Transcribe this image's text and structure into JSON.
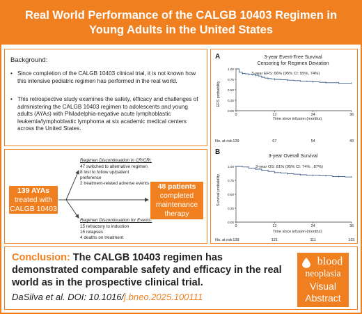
{
  "header": {
    "title_line1": "Real World Performance of the CALGB 10403 Regimen in",
    "title_line2": "Young Adults in the United States"
  },
  "background": {
    "title": "Background:",
    "bullets": [
      "Since completion of the CALGB 10403 clinical trial, it is not known how this intensive pediatric  regimen has performed in the real world.",
      "This retrospective study examines the safety, efficacy and challenges of administering the CALGB 10403 regimen to adolescents and young adults (AYAs) with Philadelphia-negative acute lymphoblastic leukemia/lymphoblastic lymphoma at six academic medical centers across the United States."
    ]
  },
  "flow": {
    "start_line1": "139 AYAs",
    "start_line2": "treated with",
    "start_line3": "CALGB 10403",
    "end_line1": "48 patients",
    "end_line2": "completed",
    "end_line3": "maintenance",
    "end_line4": "therapy",
    "cr_heading": "Regimen Discontinuation in CR/CRi:",
    "cr_items": [
      "47 switched to alternative regimen",
      "8 lost to follow up/patient",
      "preference",
      "2 treatment-related adverse events"
    ],
    "events_heading": "Regimen Discontinuation for Events:",
    "events_items": [
      "15 refractory to induction",
      "15 relapses",
      "4 deaths on treatment"
    ]
  },
  "charts": {
    "A": {
      "panel_letter": "A",
      "title_line1": "3-year Event-Free Survival",
      "title_line2": "Censoring for Regimen Deviation",
      "annotation": "3-year EFS: 66% (95% CI: 55%, 74%)",
      "ylabel": "EFS probability",
      "xlabel": "Time since infusion (months)",
      "x_ticks": [
        "0",
        "12",
        "24",
        "36"
      ],
      "y_ticks": [
        "0.00",
        "0.25",
        "0.50",
        "0.75",
        "1.00"
      ],
      "risk_label": "No. at risk",
      "risk_values": [
        "139",
        "67",
        "54",
        "49"
      ]
    },
    "B": {
      "panel_letter": "B",
      "title": "3-year Overall Survival",
      "annotation": "3-year OS: 81% (95% CI: 74% , 87%)",
      "ylabel": "Survival probability",
      "xlabel": "Time since infusion (months)",
      "x_ticks": [
        "0",
        "12",
        "24",
        "36"
      ],
      "y_ticks": [
        "0.00",
        "0.25",
        "0.50",
        "0.75",
        "1.00"
      ],
      "risk_label": "No. at risk",
      "risk_values": [
        "139",
        "121",
        "111",
        "101"
      ]
    }
  },
  "chart_data": [
    {
      "type": "line",
      "title": "3-year Event-Free Survival",
      "subtitle": "Censoring for Regimen Deviation",
      "xlabel": "Time since infusion (months)",
      "ylabel": "EFS probability",
      "xlim": [
        0,
        36
      ],
      "ylim": [
        0,
        1
      ],
      "series": [
        {
          "x": [
            0,
            1,
            2,
            3,
            4,
            5,
            6,
            7,
            8,
            9,
            10,
            11,
            12,
            14,
            16,
            18,
            20,
            22,
            24,
            26,
            28,
            30,
            32,
            34,
            36
          ],
          "y": [
            1.0,
            0.92,
            0.89,
            0.88,
            0.87,
            0.86,
            0.85,
            0.83,
            0.8,
            0.78,
            0.77,
            0.76,
            0.75,
            0.74,
            0.73,
            0.72,
            0.71,
            0.7,
            0.69,
            0.68,
            0.67,
            0.67,
            0.66,
            0.66,
            0.66
          ]
        }
      ],
      "risk_table": {
        "x": [
          0,
          12,
          24,
          36
        ],
        "n": [
          139,
          67,
          54,
          49
        ]
      }
    },
    {
      "type": "line",
      "title": "3-year Overall Survival",
      "xlabel": "Time since infusion (months)",
      "ylabel": "Survival probability",
      "xlim": [
        0,
        36
      ],
      "ylim": [
        0,
        1
      ],
      "series": [
        {
          "x": [
            0,
            2,
            4,
            6,
            8,
            10,
            12,
            14,
            16,
            18,
            20,
            22,
            24,
            26,
            28,
            30,
            32,
            34,
            36
          ],
          "y": [
            1.0,
            0.99,
            0.97,
            0.95,
            0.93,
            0.91,
            0.89,
            0.88,
            0.87,
            0.86,
            0.85,
            0.84,
            0.84,
            0.83,
            0.83,
            0.82,
            0.82,
            0.81,
            0.81
          ]
        }
      ],
      "risk_table": {
        "x": [
          0,
          12,
          24,
          36
        ],
        "n": [
          139,
          121,
          111,
          101
        ]
      }
    }
  ],
  "conclusion": {
    "label": "Conclusion:",
    "text": " The CALGB 10403 regimen has demonstrated comparable safety and efficacy in the real world as in the prospective clinical trial.",
    "citation_prefix": "DaSilva et al. DOI: 10.1016/",
    "citation_doi": "j.bneo.2025.100111"
  },
  "logo": {
    "word1": "blood",
    "word2": "neoplasia",
    "word3": "Visual",
    "word4": "Abstract"
  },
  "colors": {
    "accent": "#f07f1f",
    "curve": "#3a5f8a"
  }
}
